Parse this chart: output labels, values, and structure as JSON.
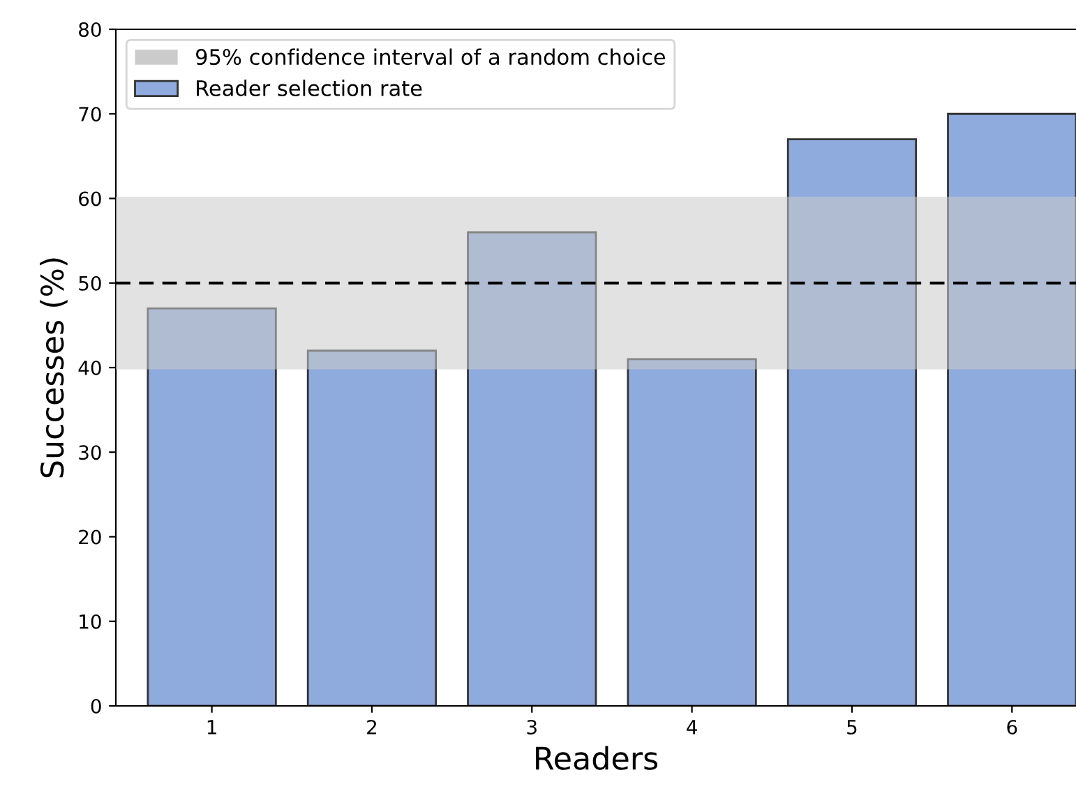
{
  "chart_data": {
    "type": "bar",
    "xlabel": "Readers",
    "ylabel": "Successes (%)",
    "categories": [
      "1",
      "2",
      "3",
      "4",
      "5",
      "6"
    ],
    "series": [
      {
        "name": "Reader selection rate",
        "color": "#8faadc",
        "values": [
          47,
          42,
          56,
          41,
          67,
          70
        ]
      }
    ],
    "ylim": [
      0,
      80
    ],
    "yticks": [
      0,
      10,
      20,
      30,
      40,
      50,
      60,
      70,
      80
    ],
    "bands": [
      {
        "axis": "y",
        "from": 39.8,
        "to": 60.2,
        "label": "95% confidence interval of a random choice",
        "color": "#cbcbcb"
      }
    ],
    "ref_lines": [
      {
        "axis": "y",
        "value": 50,
        "color": "#000000",
        "line_style": "dashed"
      }
    ],
    "legend": "top left",
    "grid": false
  }
}
